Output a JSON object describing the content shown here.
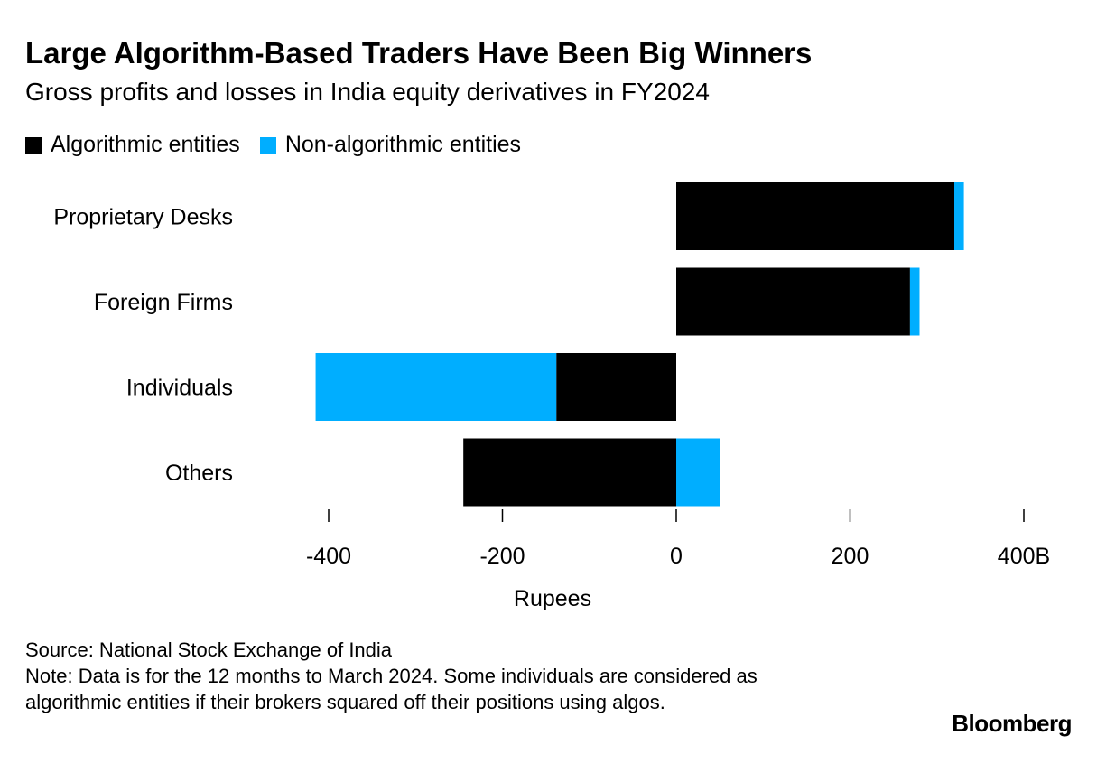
{
  "header": {
    "title": "Large Algorithm-Based Traders Have Been Big Winners",
    "subtitle": "Gross profits and losses in India equity derivatives in FY2024"
  },
  "footer": {
    "source": "Source: National Stock Exchange of India",
    "note": "Note: Data is for the 12 months to March 2024. Some individuals are considered as algorithmic entities if their brokers squared off their positions using algos."
  },
  "brand": {
    "logo_text": "Bloomberg"
  },
  "chart_data": {
    "type": "bar",
    "orientation": "horizontal",
    "stacked": true,
    "categories": [
      "Proprietary Desks",
      "Foreign Firms",
      "Individuals",
      "Others"
    ],
    "series": [
      {
        "name": "Algorithmic entities",
        "color": "#000000",
        "values": [
          320,
          269,
          -138,
          -245
        ]
      },
      {
        "name": "Non-algorithmic entities",
        "color": "#00aeff",
        "values": [
          11,
          11,
          -277,
          50
        ]
      }
    ],
    "xlim": [
      -400,
      400
    ],
    "xticks": [
      -400,
      -200,
      0,
      200,
      400
    ],
    "xtick_labels": [
      "-400",
      "-200",
      "0",
      "200",
      "400B"
    ],
    "xlabel": "Rupees",
    "legend_position": "top-left",
    "grid": false
  }
}
